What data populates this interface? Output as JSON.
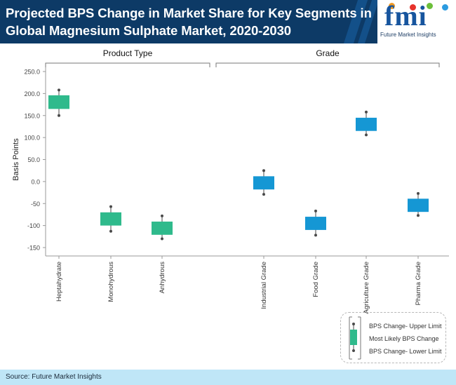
{
  "title": "Projected BPS Change in Market Share for Key Segments in Global Magnesium Sulphate Market, 2020-2030",
  "logo": {
    "letters": "fmi",
    "tagline": "Future Market Insights"
  },
  "source": "Source: Future Market Insights",
  "colors": {
    "header_bg": "#0d3a66",
    "product_type": "#2fba8c",
    "grade": "#1597d4",
    "footer_bg": "#bfe6f7"
  },
  "chart_data": {
    "type": "box",
    "ylabel": "Basis Points",
    "ylim": [
      -170,
      250
    ],
    "yticks": [
      {
        "value": 250,
        "label": "250.0"
      },
      {
        "value": 200,
        "label": "200.0"
      },
      {
        "value": 150,
        "label": "150.0"
      },
      {
        "value": 100,
        "label": "100.0"
      },
      {
        "value": 50,
        "label": "50.0"
      },
      {
        "value": 0,
        "label": "0.0"
      },
      {
        "value": -50,
        "label": "-50"
      },
      {
        "value": -100,
        "label": "-100"
      },
      {
        "value": -150,
        "label": "-150"
      }
    ],
    "groups": [
      {
        "label": "Product Type",
        "color_key": "product_type",
        "categories": [
          "Heptahydrate",
          "Monohydrous",
          "Anhydrous"
        ]
      },
      {
        "label": "Grade",
        "color_key": "grade",
        "categories": [
          "Industrial Grade",
          "Food Grade",
          "Agriculture Grade",
          "Pharma Grade"
        ]
      }
    ],
    "boxes": [
      {
        "category": "Heptahydrate",
        "upper": 208,
        "box_high": 196,
        "box_low": 165,
        "lower": 150
      },
      {
        "category": "Monohydrous",
        "upper": -57,
        "box_high": -70,
        "box_low": -100,
        "lower": -113
      },
      {
        "category": "Anhydrous",
        "upper": -78,
        "box_high": -91,
        "box_low": -121,
        "lower": -130
      },
      {
        "category": "Industrial Grade",
        "upper": 25,
        "box_high": 12,
        "box_low": -18,
        "lower": -29
      },
      {
        "category": "Food Grade",
        "upper": -67,
        "box_high": -80,
        "box_low": -110,
        "lower": -122
      },
      {
        "category": "Agriculture Grade",
        "upper": 158,
        "box_high": 145,
        "box_low": 115,
        "lower": 106
      },
      {
        "category": "Pharma Grade",
        "upper": -27,
        "box_high": -39,
        "box_low": -69,
        "lower": -77
      }
    ],
    "legend": [
      {
        "key": "upper",
        "label": "BPS Change- Upper Limit"
      },
      {
        "key": "likely",
        "label": "Most Likely BPS Change"
      },
      {
        "key": "lower",
        "label": "BPS Change- Lower Limit"
      }
    ]
  }
}
